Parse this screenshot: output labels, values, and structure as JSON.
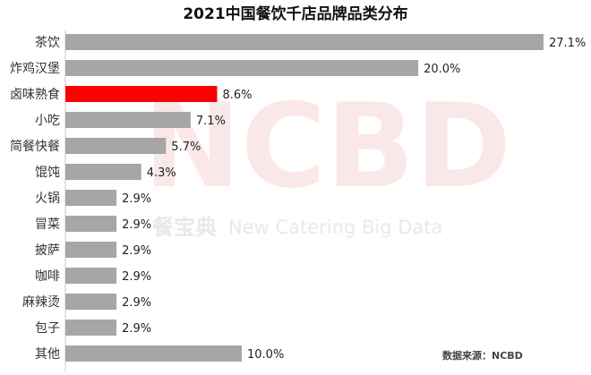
{
  "chart_data": {
    "type": "bar",
    "orientation": "horizontal",
    "title": "2021中国餐饮千店品牌品类分布",
    "categories": [
      "茶饮",
      "炸鸡汉堡",
      "卤味熟食",
      "小吃",
      "简餐快餐",
      "馄饨",
      "火锅",
      "冒菜",
      "披萨",
      "咖啡",
      "麻辣烫",
      "包子",
      "其他"
    ],
    "values": [
      27.1,
      20.0,
      8.6,
      7.1,
      5.7,
      4.3,
      2.9,
      2.9,
      2.9,
      2.9,
      2.9,
      2.9,
      10.0
    ],
    "value_labels": [
      "27.1%",
      "20.0%",
      "8.6%",
      "7.1%",
      "5.7%",
      "4.3%",
      "2.9%",
      "2.9%",
      "2.9%",
      "2.9%",
      "2.9%",
      "2.9%",
      "10.0%"
    ],
    "highlight_category": "卤味熟食",
    "colors": {
      "bar": "#a6a6a6",
      "highlight": "#ff0000"
    },
    "grid": false,
    "legend": "none",
    "source": "数据来源：NCBD",
    "watermark": {
      "logo": "NCBD",
      "cn": "餐宝典",
      "en": "New Catering Big Data"
    }
  }
}
